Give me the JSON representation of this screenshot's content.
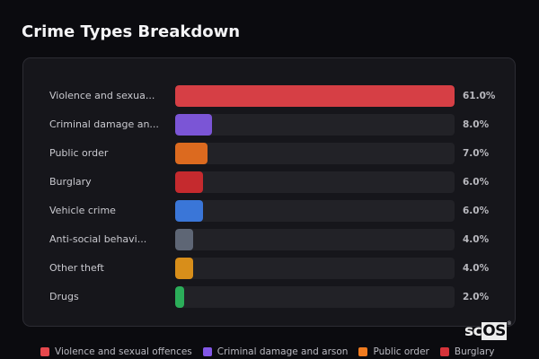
{
  "title": "Crime Types Breakdown",
  "chart_data": {
    "type": "bar",
    "orientation": "horizontal",
    "title": "Crime Types Breakdown",
    "categories": [
      "Violence and sexual offences",
      "Criminal damage and arson",
      "Public order",
      "Burglary",
      "Vehicle crime",
      "Anti-social behaviour",
      "Other theft",
      "Drugs"
    ],
    "display_labels": [
      "Violence and sexua...",
      "Criminal damage an...",
      "Public order",
      "Burglary",
      "Vehicle crime",
      "Anti-social behavi...",
      "Other theft",
      "Drugs"
    ],
    "values": [
      61.0,
      8.0,
      7.0,
      6.0,
      6.0,
      4.0,
      4.0,
      2.0
    ],
    "value_labels": [
      "61.0%",
      "8.0%",
      "7.0%",
      "6.0%",
      "6.0%",
      "4.0%",
      "4.0%",
      "2.0%"
    ],
    "colors": [
      "#d63f45",
      "#7b55d6",
      "#dc6a1f",
      "#c52a2e",
      "#3a76d8",
      "#5e6675",
      "#d88e1a",
      "#2bad59"
    ],
    "xlabel": "",
    "ylabel": "",
    "xlim": [
      0,
      61.0
    ],
    "unit": "%",
    "grid": false,
    "legend_position": "bottom"
  },
  "legend": [
    {
      "label": "Violence and sexual offences",
      "color": "#e5484d"
    },
    {
      "label": "Criminal damage and arson",
      "color": "#8257e6"
    },
    {
      "label": "Public order",
      "color": "#f07b1f"
    },
    {
      "label": "Burglary",
      "color": "#d6333a"
    }
  ],
  "logo": {
    "sc": "sc",
    "os": "OS",
    "mark": "®"
  }
}
